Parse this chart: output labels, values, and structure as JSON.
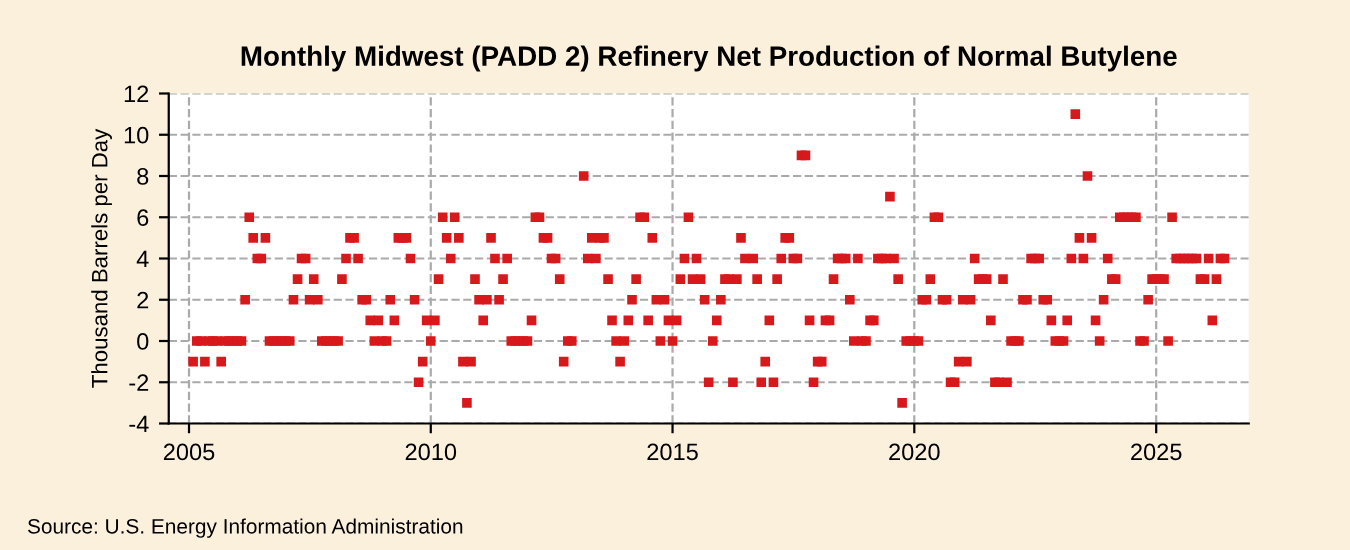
{
  "chart_data": {
    "type": "scatter",
    "title": "Monthly Midwest (PADD 2) Refinery Net Production of Normal Butylene",
    "ylabel": "Thousand Barrels per Day",
    "annotations": [
      "Source: U.S. Energy Information Administration"
    ],
    "xlim": [
      "2004-08",
      "2026-12"
    ],
    "ylim": [
      -4,
      12
    ],
    "yticks": [
      -4,
      -2,
      0,
      2,
      4,
      6,
      8,
      10,
      12
    ],
    "xticks": [
      {
        "value": "2005-01",
        "label": "2005"
      },
      {
        "value": "2010-01",
        "label": "2010"
      },
      {
        "value": "2015-01",
        "label": "2015"
      },
      {
        "value": "2020-01",
        "label": "2020"
      },
      {
        "value": "2025-01",
        "label": "2025"
      }
    ],
    "grid": true,
    "marker": "square",
    "x": [
      "2005-02",
      "2005-03",
      "2005-04",
      "2005-05",
      "2005-06",
      "2005-07",
      "2005-08",
      "2005-09",
      "2005-10",
      "2005-11",
      "2005-12",
      "2006-01",
      "2006-02",
      "2006-03",
      "2006-04",
      "2006-05",
      "2006-06",
      "2006-07",
      "2006-08",
      "2006-09",
      "2006-10",
      "2006-11",
      "2006-12",
      "2007-01",
      "2007-02",
      "2007-03",
      "2007-04",
      "2007-05",
      "2007-06",
      "2007-07",
      "2007-08",
      "2007-09",
      "2007-10",
      "2007-11",
      "2007-12",
      "2008-01",
      "2008-02",
      "2008-03",
      "2008-04",
      "2008-05",
      "2008-06",
      "2008-07",
      "2008-08",
      "2008-09",
      "2008-10",
      "2008-11",
      "2008-12",
      "2009-01",
      "2009-02",
      "2009-03",
      "2009-04",
      "2009-05",
      "2009-06",
      "2009-07",
      "2009-08",
      "2009-09",
      "2009-10",
      "2009-11",
      "2009-12",
      "2010-01",
      "2010-02",
      "2010-03",
      "2010-04",
      "2010-05",
      "2010-06",
      "2010-07",
      "2010-08",
      "2010-09",
      "2010-10",
      "2010-11",
      "2010-12",
      "2011-01",
      "2011-02",
      "2011-03",
      "2011-04",
      "2011-05",
      "2011-06",
      "2011-07",
      "2011-08",
      "2011-09",
      "2011-10",
      "2011-11",
      "2011-12",
      "2012-01",
      "2012-02",
      "2012-03",
      "2012-04",
      "2012-05",
      "2012-06",
      "2012-07",
      "2012-08",
      "2012-09",
      "2012-10",
      "2012-11",
      "2012-12",
      "2013-01",
      "2013-02",
      "2013-03",
      "2013-04",
      "2013-05",
      "2013-06",
      "2013-07",
      "2013-08",
      "2013-09",
      "2013-10",
      "2013-11",
      "2013-12",
      "2014-01",
      "2014-02",
      "2014-03",
      "2014-04",
      "2014-05",
      "2014-06",
      "2014-07",
      "2014-08",
      "2014-09",
      "2014-10",
      "2014-11",
      "2014-12",
      "2015-01",
      "2015-02",
      "2015-03",
      "2015-04",
      "2015-05",
      "2015-06",
      "2015-07",
      "2015-08",
      "2015-09",
      "2015-10",
      "2015-11",
      "2015-12",
      "2016-01",
      "2016-02",
      "2016-03",
      "2016-04",
      "2016-05",
      "2016-06",
      "2016-07",
      "2016-08",
      "2016-09",
      "2016-10",
      "2016-11",
      "2016-12",
      "2017-01",
      "2017-02",
      "2017-03",
      "2017-04",
      "2017-05",
      "2017-06",
      "2017-07",
      "2017-08",
      "2017-09",
      "2017-10",
      "2017-11",
      "2017-12",
      "2018-01",
      "2018-02",
      "2018-03",
      "2018-04",
      "2018-05",
      "2018-06",
      "2018-07",
      "2018-08",
      "2018-09",
      "2018-10",
      "2018-11",
      "2018-12",
      "2019-01",
      "2019-02",
      "2019-03",
      "2019-04",
      "2019-05",
      "2019-06",
      "2019-07",
      "2019-08",
      "2019-09",
      "2019-10",
      "2019-11",
      "2019-12",
      "2020-01",
      "2020-02",
      "2020-03",
      "2020-04",
      "2020-05",
      "2020-06",
      "2020-07",
      "2020-08",
      "2020-09",
      "2020-10",
      "2020-11",
      "2020-12",
      "2021-01",
      "2021-02",
      "2021-03",
      "2021-04",
      "2021-05",
      "2021-06",
      "2021-07",
      "2021-08",
      "2021-09",
      "2021-10",
      "2021-11",
      "2021-12",
      "2022-01",
      "2022-02",
      "2022-03",
      "2022-04",
      "2022-05",
      "2022-06",
      "2022-07",
      "2022-08",
      "2022-09",
      "2022-10",
      "2022-11",
      "2022-12",
      "2023-01",
      "2023-02",
      "2023-03",
      "2023-04",
      "2023-05",
      "2023-06",
      "2023-07",
      "2023-08",
      "2023-09",
      "2023-10",
      "2023-11",
      "2023-12",
      "2024-01",
      "2024-02",
      "2024-03",
      "2024-04",
      "2024-05",
      "2024-06",
      "2024-07",
      "2024-08",
      "2024-09",
      "2024-10",
      "2024-11",
      "2024-12",
      "2025-01",
      "2025-02",
      "2025-03",
      "2025-04",
      "2025-05",
      "2025-06",
      "2025-07",
      "2025-08",
      "2025-09",
      "2025-10",
      "2025-11",
      "2025-12",
      "2026-01",
      "2026-02",
      "2026-03",
      "2026-04",
      "2026-05",
      "2026-06"
    ],
    "series": [
      {
        "color": "#d7191c",
        "values": [
          -1,
          0,
          0,
          -1,
          0,
          0,
          0,
          -1,
          0,
          0,
          0,
          0,
          0,
          2,
          6,
          5,
          4,
          4,
          5,
          0,
          0,
          0,
          0,
          0,
          0,
          2,
          3,
          4,
          4,
          2,
          3,
          2,
          0,
          0,
          0,
          0,
          0,
          3,
          4,
          5,
          5,
          4,
          2,
          2,
          1,
          0,
          1,
          0,
          0,
          2,
          1,
          5,
          5,
          5,
          4,
          2,
          -2,
          -1,
          1,
          0,
          1,
          3,
          6,
          5,
          4,
          6,
          5,
          -1,
          -3,
          -1,
          3,
          2,
          1,
          2,
          5,
          4,
          2,
          3,
          4,
          0,
          0,
          0,
          0,
          0,
          1,
          6,
          6,
          5,
          5,
          4,
          4,
          3,
          -1,
          0,
          0,
          null,
          null,
          8,
          4,
          5,
          4,
          5,
          5,
          3,
          1,
          0,
          -1,
          0,
          1,
          2,
          3,
          6,
          6,
          1,
          5,
          2,
          0,
          2,
          1,
          0,
          1,
          3,
          4,
          6,
          3,
          4,
          3,
          2,
          -2,
          0,
          1,
          2,
          3,
          3,
          -2,
          3,
          5,
          4,
          null,
          4,
          3,
          -2,
          -1,
          1,
          -2,
          3,
          4,
          5,
          5,
          4,
          4,
          9,
          9,
          1,
          -2,
          -1,
          -1,
          1,
          1,
          3,
          4,
          4,
          4,
          2,
          0,
          4,
          0,
          0,
          1,
          1,
          4,
          4,
          4,
          7,
          4,
          3,
          -3,
          0,
          0,
          0,
          0,
          2,
          2,
          3,
          6,
          6,
          2,
          2,
          -2,
          -2,
          -1,
          2,
          -1,
          2,
          4,
          3,
          3,
          3,
          1,
          -2,
          -2,
          3,
          -2,
          0,
          0,
          0,
          2,
          2,
          4,
          4,
          4,
          2,
          2,
          1,
          0,
          0,
          0,
          1,
          4,
          11,
          5,
          4,
          8,
          5,
          1,
          0,
          2,
          4,
          3,
          3,
          6,
          6,
          6,
          6,
          6,
          0,
          0,
          2,
          3,
          3,
          3,
          3,
          0,
          6,
          4,
          4,
          4,
          4,
          4,
          4,
          3,
          3,
          4,
          1,
          3,
          4,
          4
        ]
      }
    ]
  }
}
